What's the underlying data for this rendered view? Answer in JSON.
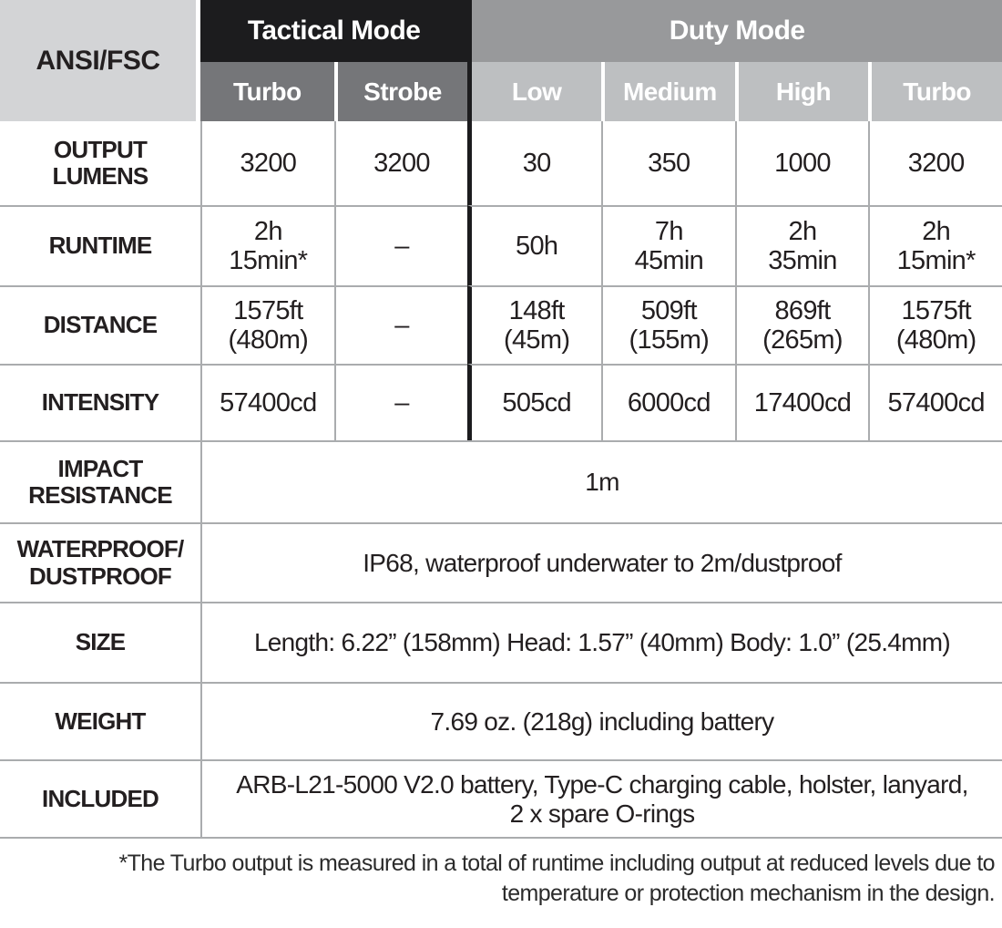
{
  "colors": {
    "tactical-bg": "#1c1c1e",
    "tactical-sub-bg": "#757679",
    "duty-bg": "#98999b",
    "duty-sub-bg": "#bdbfc1",
    "corner-bg": "#d3d4d6",
    "grid-line": "#aaacae",
    "divider-black": "#1c1c1e",
    "text": "#231f20",
    "header-text": "#ffffff",
    "footnote-text": "#2b2b2b"
  },
  "table": {
    "corner_label": "ANSI/FSC",
    "groups": [
      {
        "label": "Tactical Mode"
      },
      {
        "label": "Duty Mode"
      }
    ],
    "subheaders": [
      "Turbo",
      "Strobe",
      "Low",
      "Medium",
      "High",
      "Turbo"
    ],
    "rows": [
      {
        "label": "OUTPUT\nLUMENS",
        "values": [
          "3200",
          "3200",
          "30",
          "350",
          "1000",
          "3200"
        ]
      },
      {
        "label": "RUNTIME",
        "values": [
          "2h\n15min*",
          "–",
          "50h",
          "7h\n45min",
          "2h\n35min",
          "2h\n15min*"
        ]
      },
      {
        "label": "DISTANCE",
        "values": [
          "1575ft\n(480m)",
          "–",
          "148ft\n(45m)",
          "509ft\n(155m)",
          "869ft\n(265m)",
          "1575ft\n(480m)"
        ]
      },
      {
        "label": "INTENSITY",
        "values": [
          "57400cd",
          "–",
          "505cd",
          "6000cd",
          "17400cd",
          "57400cd"
        ]
      }
    ],
    "merged_rows": [
      {
        "label": "IMPACT\nRESISTANCE",
        "value": "1m"
      },
      {
        "label": "WATERPROOF/\nDUSTPROOF",
        "value": "IP68, waterproof underwater to 2m/dustproof"
      },
      {
        "label": "SIZE",
        "value": "Length: 6.22” (158mm)  Head: 1.57” (40mm)  Body: 1.0” (25.4mm)"
      },
      {
        "label": "WEIGHT",
        "value": "7.69 oz. (218g) including battery"
      },
      {
        "label": "INCLUDED",
        "value": "ARB-L21-5000 V2.0 battery, Type-C charging cable, holster, lanyard,\n2 x spare O-rings"
      }
    ]
  },
  "footnote": "*The Turbo output is measured in a total of runtime including output at reduced levels due to\ntemperature or protection mechanism in the design."
}
